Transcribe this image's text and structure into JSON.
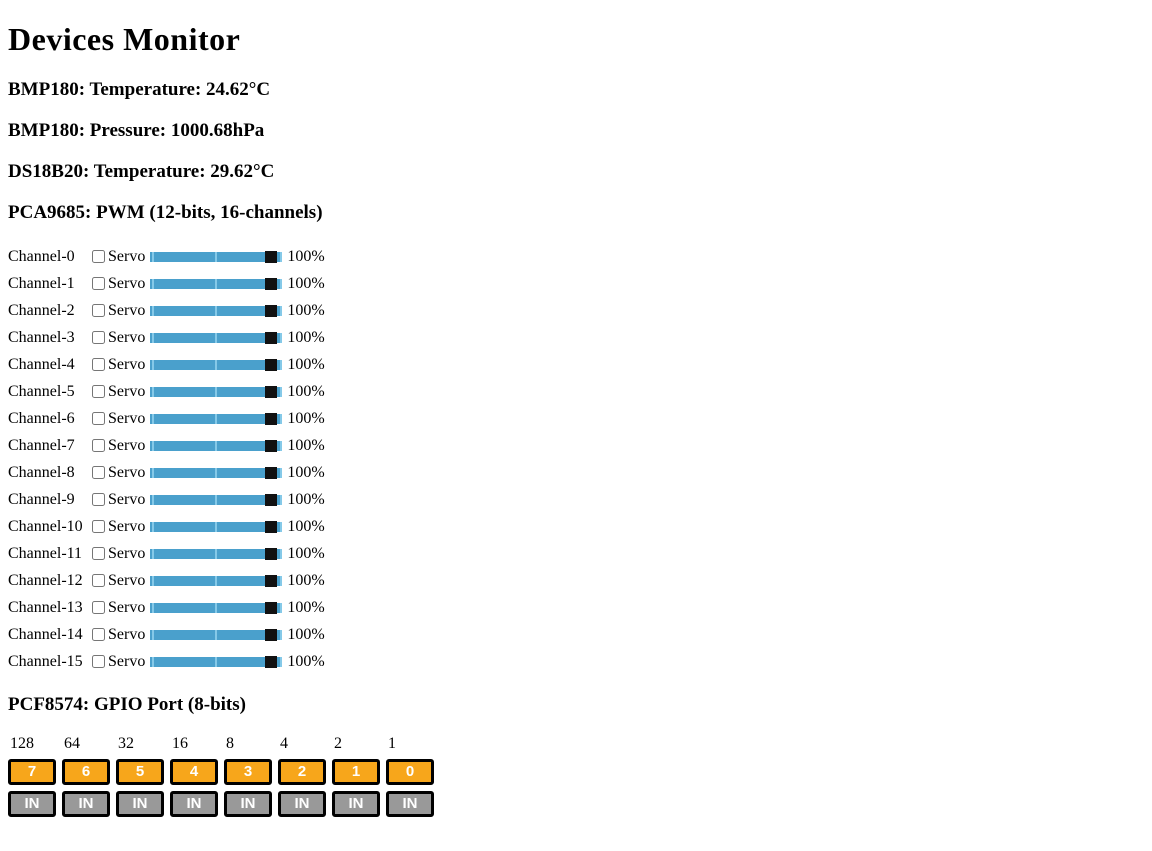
{
  "title": "Devices Monitor",
  "sensors": {
    "bmp180_temperature": "BMP180: Temperature: 24.62°C",
    "bmp180_pressure": "BMP180: Pressure: 1000.68hPa",
    "ds18b20_temperature": "DS18B20: Temperature: 29.62°C"
  },
  "pwm": {
    "heading": "PCA9685: PWM (12-bits, 16-channels)",
    "servo_label": "Servo",
    "channels": [
      {
        "label": "Channel-0",
        "servo_checked": false,
        "slider_value": 100,
        "percent": "100%"
      },
      {
        "label": "Channel-1",
        "servo_checked": false,
        "slider_value": 100,
        "percent": "100%"
      },
      {
        "label": "Channel-2",
        "servo_checked": false,
        "slider_value": 100,
        "percent": "100%"
      },
      {
        "label": "Channel-3",
        "servo_checked": false,
        "slider_value": 100,
        "percent": "100%"
      },
      {
        "label": "Channel-4",
        "servo_checked": false,
        "slider_value": 100,
        "percent": "100%"
      },
      {
        "label": "Channel-5",
        "servo_checked": false,
        "slider_value": 100,
        "percent": "100%"
      },
      {
        "label": "Channel-6",
        "servo_checked": false,
        "slider_value": 100,
        "percent": "100%"
      },
      {
        "label": "Channel-7",
        "servo_checked": false,
        "slider_value": 100,
        "percent": "100%"
      },
      {
        "label": "Channel-8",
        "servo_checked": false,
        "slider_value": 100,
        "percent": "100%"
      },
      {
        "label": "Channel-9",
        "servo_checked": false,
        "slider_value": 100,
        "percent": "100%"
      },
      {
        "label": "Channel-10",
        "servo_checked": false,
        "slider_value": 100,
        "percent": "100%"
      },
      {
        "label": "Channel-11",
        "servo_checked": false,
        "slider_value": 100,
        "percent": "100%"
      },
      {
        "label": "Channel-12",
        "servo_checked": false,
        "slider_value": 100,
        "percent": "100%"
      },
      {
        "label": "Channel-13",
        "servo_checked": false,
        "slider_value": 100,
        "percent": "100%"
      },
      {
        "label": "Channel-14",
        "servo_checked": false,
        "slider_value": 100,
        "percent": "100%"
      },
      {
        "label": "Channel-15",
        "servo_checked": false,
        "slider_value": 100,
        "percent": "100%"
      }
    ]
  },
  "gpio": {
    "heading": "PCF8574: GPIO Port (8-bits)",
    "bit_weights": [
      "128",
      "64",
      "32",
      "16",
      "8",
      "4",
      "2",
      "1"
    ],
    "pins": [
      {
        "bit": "7",
        "mode": "IN"
      },
      {
        "bit": "6",
        "mode": "IN"
      },
      {
        "bit": "5",
        "mode": "IN"
      },
      {
        "bit": "4",
        "mode": "IN"
      },
      {
        "bit": "3",
        "mode": "IN"
      },
      {
        "bit": "2",
        "mode": "IN"
      },
      {
        "bit": "1",
        "mode": "IN"
      },
      {
        "bit": "0",
        "mode": "IN"
      }
    ]
  },
  "colors": {
    "slider_track": "#4AA0CC",
    "slider_tick": "#85C9E8",
    "slider_thumb": "#111111",
    "pin_orange": "#F7A61B",
    "mode_gray": "#999999"
  }
}
